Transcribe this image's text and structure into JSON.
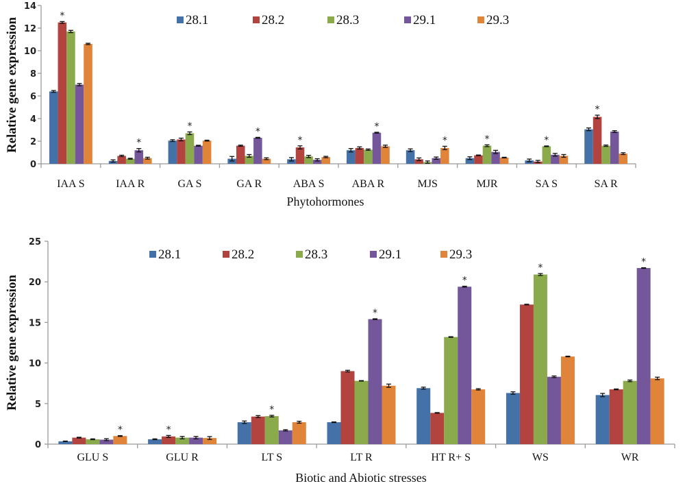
{
  "series_colors": {
    "28.1": "#4472a8",
    "28.2": "#b2433f",
    "28.3": "#8aaa4b",
    "29.1": "#73579a",
    "29.3": "#e0843a"
  },
  "chart_data": [
    {
      "type": "bar",
      "title": "",
      "xlabel": "Phytohormones",
      "ylabel": "Relative  gene expression",
      "ylim": [
        0,
        14
      ],
      "yticks": [
        0,
        2,
        4,
        6,
        8,
        10,
        12,
        14
      ],
      "grid": false,
      "legend": {
        "position": "top",
        "entries": [
          "28.1",
          "28.2",
          "28.3",
          "29.1",
          "29.3"
        ]
      },
      "categories": [
        "IAA S",
        "IAA R",
        "GA S",
        "GA R",
        "ABA S",
        "ABA R",
        "MJS",
        "MJR",
        "SA S",
        "SA R"
      ],
      "series": [
        {
          "name": "28.1",
          "values": [
            6.4,
            0.25,
            2.05,
            0.45,
            0.4,
            1.2,
            1.2,
            0.5,
            0.3,
            3.05
          ],
          "errors": [
            0.08,
            0.1,
            0.08,
            0.2,
            0.15,
            0.15,
            0.12,
            0.12,
            0.12,
            0.12
          ]
        },
        {
          "name": "28.2",
          "values": [
            12.5,
            0.7,
            2.15,
            1.6,
            1.45,
            1.4,
            0.4,
            0.75,
            0.2,
            4.15
          ],
          "errors": [
            0.08,
            0.06,
            0.12,
            0.05,
            0.14,
            0.1,
            0.12,
            0.03,
            0.1,
            0.15
          ]
        },
        {
          "name": "28.3",
          "values": [
            11.7,
            0.45,
            2.7,
            0.7,
            0.65,
            1.25,
            0.15,
            1.6,
            1.55,
            1.6
          ],
          "errors": [
            0.1,
            0.04,
            0.12,
            0.12,
            0.1,
            0.06,
            0.1,
            0.08,
            0.03,
            0.06
          ]
        },
        {
          "name": "29.1",
          "values": [
            7.0,
            1.2,
            1.6,
            2.3,
            0.35,
            2.75,
            0.5,
            1.05,
            0.8,
            2.85
          ],
          "errors": [
            0.1,
            0.15,
            0.04,
            0.04,
            0.1,
            0.04,
            0.1,
            0.14,
            0.12,
            0.08
          ]
        },
        {
          "name": "29.3",
          "values": [
            10.6,
            0.5,
            2.05,
            0.45,
            0.6,
            1.55,
            1.4,
            0.55,
            0.7,
            0.9
          ],
          "errors": [
            0.06,
            0.08,
            0.04,
            0.08,
            0.06,
            0.1,
            0.15,
            0.03,
            0.12,
            0.08
          ]
        }
      ],
      "significant": [
        {
          "category": "IAA S",
          "series": "28.2"
        },
        {
          "category": "IAA R",
          "series": "29.1"
        },
        {
          "category": "GA S",
          "series": "28.3"
        },
        {
          "category": "GA R",
          "series": "29.1"
        },
        {
          "category": "ABA S",
          "series": "28.2"
        },
        {
          "category": "ABA R",
          "series": "29.1"
        },
        {
          "category": "MJS",
          "series": "29.3"
        },
        {
          "category": "MJR",
          "series": "28.3"
        },
        {
          "category": "SA S",
          "series": "28.3"
        },
        {
          "category": "SA R",
          "series": "28.2"
        }
      ],
      "significance_marker": "*"
    },
    {
      "type": "bar",
      "title": "",
      "xlabel": "Biotic and Abiotic stresses",
      "ylabel": "Relative gene expression",
      "ylim": [
        0,
        25
      ],
      "yticks": [
        0,
        5,
        10,
        15,
        20,
        25
      ],
      "grid": false,
      "legend": {
        "position": "top",
        "entries": [
          "28.1",
          "28.2",
          "28.3",
          "29.1",
          "29.3"
        ]
      },
      "categories": [
        "GLU S",
        "GLU R",
        "LT S",
        "LT R",
        "HT R+ S",
        "WS",
        "WR"
      ],
      "series": [
        {
          "name": "28.1",
          "values": [
            0.35,
            0.6,
            2.7,
            2.7,
            6.9,
            6.3,
            6.05
          ],
          "errors": [
            0.03,
            0.05,
            0.15,
            0.04,
            0.12,
            0.15,
            0.2
          ]
        },
        {
          "name": "28.2",
          "values": [
            0.8,
            0.95,
            3.4,
            9.0,
            3.85,
            17.2,
            6.75
          ],
          "errors": [
            0.05,
            0.12,
            0.12,
            0.1,
            0.04,
            0.04,
            0.05
          ]
        },
        {
          "name": "28.3",
          "values": [
            0.6,
            0.8,
            3.45,
            7.8,
            13.2,
            20.9,
            7.8
          ],
          "errors": [
            0.05,
            0.15,
            0.1,
            0.03,
            0.04,
            0.12,
            0.1
          ]
        },
        {
          "name": "29.1",
          "values": [
            0.55,
            0.8,
            1.7,
            15.4,
            19.4,
            8.3,
            21.7
          ],
          "errors": [
            0.12,
            0.15,
            0.08,
            0.05,
            0.06,
            0.1,
            0.04
          ]
        },
        {
          "name": "29.3",
          "values": [
            1.0,
            0.75,
            2.7,
            7.2,
            6.75,
            10.8,
            8.1
          ],
          "errors": [
            0.05,
            0.18,
            0.12,
            0.2,
            0.08,
            0.04,
            0.15
          ]
        }
      ],
      "significant": [
        {
          "category": "GLU S",
          "series": "29.3"
        },
        {
          "category": "GLU R",
          "series": "28.2"
        },
        {
          "category": "LT S",
          "series": "28.3"
        },
        {
          "category": "LT R",
          "series": "29.1"
        },
        {
          "category": "HT R+ S",
          "series": "29.1"
        },
        {
          "category": "WS",
          "series": "28.3"
        },
        {
          "category": "WR",
          "series": "29.1"
        }
      ],
      "significance_marker": "*"
    }
  ]
}
